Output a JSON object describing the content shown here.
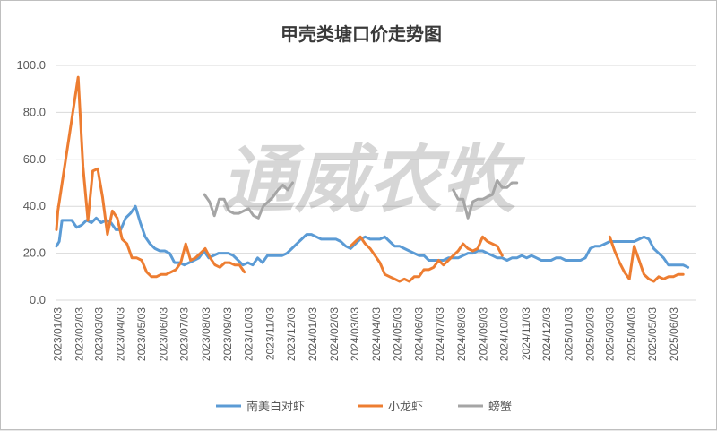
{
  "chart_data": {
    "type": "line",
    "title": "甲壳类塘口价走势图",
    "watermark": "通威农牧",
    "xlabel": "",
    "ylabel": "",
    "ylim": [
      0,
      100
    ],
    "y_ticks": [
      "0.0",
      "20.0",
      "40.0",
      "60.0",
      "80.0",
      "100.0"
    ],
    "x_range": [
      "2023-01-01",
      "2025-07-05"
    ],
    "x_ticks": [
      "2023/01/03",
      "2023/02/03",
      "2023/03/03",
      "2023/04/03",
      "2023/05/03",
      "2023/06/03",
      "2023/07/03",
      "2023/08/03",
      "2023/09/03",
      "2023/10/03",
      "2023/11/03",
      "2023/12/03",
      "2024/01/03",
      "2024/02/03",
      "2024/03/03",
      "2024/04/03",
      "2024/05/03",
      "2024/06/03",
      "2024/07/03",
      "2024/08/03",
      "2024/09/03",
      "2024/10/03",
      "2024/11/03",
      "2024/12/03",
      "2025/01/03",
      "2025/02/03",
      "2025/03/03",
      "2025/04/03",
      "2025/05/03",
      "2025/06/03"
    ],
    "grid": true,
    "legend": "bottom",
    "series": [
      {
        "name": "南美白对虾",
        "color": "#5b9bd5",
        "points": [
          [
            "2023-01-01",
            23
          ],
          [
            "2023-01-05",
            25
          ],
          [
            "2023-01-09",
            34
          ],
          [
            "2023-01-16",
            34
          ],
          [
            "2023-01-23",
            34
          ],
          [
            "2023-01-30",
            31
          ],
          [
            "2023-02-06",
            32
          ],
          [
            "2023-02-13",
            34
          ],
          [
            "2023-02-20",
            33
          ],
          [
            "2023-02-27",
            35
          ],
          [
            "2023-03-06",
            33
          ],
          [
            "2023-03-13",
            34
          ],
          [
            "2023-03-20",
            33
          ],
          [
            "2023-03-27",
            30
          ],
          [
            "2023-04-03",
            30
          ],
          [
            "2023-04-10",
            35
          ],
          [
            "2023-04-17",
            37
          ],
          [
            "2023-04-24",
            40
          ],
          [
            "2023-05-01",
            33
          ],
          [
            "2023-05-08",
            27
          ],
          [
            "2023-05-15",
            24
          ],
          [
            "2023-05-22",
            22
          ],
          [
            "2023-05-29",
            21
          ],
          [
            "2023-06-05",
            21
          ],
          [
            "2023-06-12",
            20
          ],
          [
            "2023-06-19",
            16
          ],
          [
            "2023-06-26",
            16
          ],
          [
            "2023-07-03",
            15
          ],
          [
            "2023-07-10",
            16
          ],
          [
            "2023-07-17",
            17
          ],
          [
            "2023-07-24",
            18
          ],
          [
            "2023-07-31",
            21
          ],
          [
            "2023-08-07",
            18
          ],
          [
            "2023-08-14",
            19
          ],
          [
            "2023-08-21",
            20
          ],
          [
            "2023-08-28",
            20
          ],
          [
            "2023-09-04",
            20
          ],
          [
            "2023-09-11",
            19
          ],
          [
            "2023-09-18",
            17
          ],
          [
            "2023-09-25",
            15
          ],
          [
            "2023-10-02",
            16
          ],
          [
            "2023-10-09",
            15
          ],
          [
            "2023-10-16",
            18
          ],
          [
            "2023-10-23",
            16
          ],
          [
            "2023-10-30",
            19
          ],
          [
            "2023-11-06",
            19
          ],
          [
            "2023-11-13",
            19
          ],
          [
            "2023-11-20",
            19
          ],
          [
            "2023-11-27",
            20
          ],
          [
            "2023-12-04",
            22
          ],
          [
            "2023-12-11",
            24
          ],
          [
            "2023-12-18",
            26
          ],
          [
            "2023-12-25",
            28
          ],
          [
            "2024-01-01",
            28
          ],
          [
            "2024-01-08",
            27
          ],
          [
            "2024-01-15",
            26
          ],
          [
            "2024-01-22",
            26
          ],
          [
            "2024-01-29",
            26
          ],
          [
            "2024-02-05",
            26
          ],
          [
            "2024-02-12",
            25
          ],
          [
            "2024-02-19",
            23
          ],
          [
            "2024-02-26",
            22
          ],
          [
            "2024-03-04",
            24
          ],
          [
            "2024-03-11",
            26
          ],
          [
            "2024-03-18",
            27
          ],
          [
            "2024-03-25",
            26
          ],
          [
            "2024-04-01",
            26
          ],
          [
            "2024-04-08",
            26
          ],
          [
            "2024-04-15",
            27
          ],
          [
            "2024-04-22",
            25
          ],
          [
            "2024-04-29",
            23
          ],
          [
            "2024-05-06",
            23
          ],
          [
            "2024-05-13",
            22
          ],
          [
            "2024-05-20",
            21
          ],
          [
            "2024-05-27",
            20
          ],
          [
            "2024-06-03",
            19
          ],
          [
            "2024-06-10",
            19
          ],
          [
            "2024-06-17",
            17
          ],
          [
            "2024-06-24",
            17
          ],
          [
            "2024-07-01",
            17
          ],
          [
            "2024-07-08",
            17
          ],
          [
            "2024-07-15",
            18
          ],
          [
            "2024-07-22",
            18
          ],
          [
            "2024-07-29",
            18
          ],
          [
            "2024-08-05",
            19
          ],
          [
            "2024-08-12",
            20
          ],
          [
            "2024-08-19",
            20
          ],
          [
            "2024-08-26",
            21
          ],
          [
            "2024-09-02",
            21
          ],
          [
            "2024-09-09",
            20
          ],
          [
            "2024-09-16",
            19
          ],
          [
            "2024-09-23",
            18
          ],
          [
            "2024-09-30",
            18
          ],
          [
            "2024-10-07",
            17
          ],
          [
            "2024-10-14",
            18
          ],
          [
            "2024-10-21",
            18
          ],
          [
            "2024-10-28",
            19
          ],
          [
            "2024-11-04",
            18
          ],
          [
            "2024-11-11",
            19
          ],
          [
            "2024-11-18",
            18
          ],
          [
            "2024-11-25",
            17
          ],
          [
            "2024-12-02",
            17
          ],
          [
            "2024-12-09",
            17
          ],
          [
            "2024-12-16",
            18
          ],
          [
            "2024-12-23",
            18
          ],
          [
            "2024-12-30",
            17
          ],
          [
            "2025-01-06",
            17
          ],
          [
            "2025-01-13",
            17
          ],
          [
            "2025-01-20",
            17
          ],
          [
            "2025-01-27",
            18
          ],
          [
            "2025-02-03",
            22
          ],
          [
            "2025-02-10",
            23
          ],
          [
            "2025-02-17",
            23
          ],
          [
            "2025-02-24",
            24
          ],
          [
            "2025-03-03",
            25
          ],
          [
            "2025-03-10",
            25
          ],
          [
            "2025-03-17",
            25
          ],
          [
            "2025-03-24",
            25
          ],
          [
            "2025-03-31",
            25
          ],
          [
            "2025-04-07",
            25
          ],
          [
            "2025-04-14",
            26
          ],
          [
            "2025-04-21",
            27
          ],
          [
            "2025-04-28",
            26
          ],
          [
            "2025-05-05",
            22
          ],
          [
            "2025-05-12",
            20
          ],
          [
            "2025-05-19",
            18
          ],
          [
            "2025-05-26",
            15
          ],
          [
            "2025-06-02",
            15
          ],
          [
            "2025-06-09",
            15
          ],
          [
            "2025-06-16",
            15
          ],
          [
            "2025-06-23",
            14
          ]
        ]
      },
      {
        "name": "小龙虾",
        "color": "#ed7d31",
        "points": [
          [
            "2023-01-01",
            30
          ],
          [
            "2023-01-03",
            38
          ],
          [
            "2023-02-01",
            95
          ],
          [
            "2023-02-08",
            57
          ],
          [
            "2023-02-15",
            34
          ],
          [
            "2023-02-22",
            55
          ],
          [
            "2023-03-01",
            56
          ],
          [
            "2023-03-08",
            44
          ],
          [
            "2023-03-15",
            28
          ],
          [
            "2023-03-22",
            38
          ],
          [
            "2023-03-29",
            35
          ],
          [
            "2023-04-05",
            26
          ],
          [
            "2023-04-12",
            24
          ],
          [
            "2023-04-19",
            18
          ],
          [
            "2023-04-26",
            18
          ],
          [
            "2023-05-03",
            17
          ],
          [
            "2023-05-10",
            12
          ],
          [
            "2023-05-17",
            10
          ],
          [
            "2023-05-24",
            10
          ],
          [
            "2023-05-31",
            11
          ],
          [
            "2023-06-07",
            11
          ],
          [
            "2023-06-14",
            12
          ],
          [
            "2023-06-21",
            13
          ],
          [
            "2023-06-28",
            16
          ],
          [
            "2023-07-05",
            24
          ],
          [
            "2023-07-12",
            17
          ],
          [
            "2023-07-19",
            18
          ],
          [
            "2023-07-26",
            20
          ],
          [
            "2023-08-02",
            22
          ],
          [
            "2023-08-09",
            18
          ],
          [
            "2023-08-16",
            15
          ],
          [
            "2023-08-23",
            14
          ],
          [
            "2023-08-30",
            16
          ],
          [
            "2023-09-06",
            16
          ],
          [
            "2023-09-13",
            15
          ],
          [
            "2023-09-20",
            15
          ],
          [
            "2023-09-27",
            12
          ],
          [
            "2024-02-26",
            23
          ],
          [
            "2024-03-04",
            25
          ],
          [
            "2024-03-11",
            27
          ],
          [
            "2024-03-18",
            24
          ],
          [
            "2024-03-25",
            22
          ],
          [
            "2024-04-01",
            19
          ],
          [
            "2024-04-08",
            16
          ],
          [
            "2024-04-15",
            11
          ],
          [
            "2024-04-22",
            10
          ],
          [
            "2024-04-29",
            9
          ],
          [
            "2024-05-06",
            8
          ],
          [
            "2024-05-13",
            9
          ],
          [
            "2024-05-20",
            8
          ],
          [
            "2024-05-27",
            10
          ],
          [
            "2024-06-03",
            10
          ],
          [
            "2024-06-10",
            13
          ],
          [
            "2024-06-17",
            13
          ],
          [
            "2024-06-24",
            14
          ],
          [
            "2024-07-01",
            17
          ],
          [
            "2024-07-08",
            15
          ],
          [
            "2024-07-15",
            17
          ],
          [
            "2024-07-22",
            19
          ],
          [
            "2024-07-29",
            21
          ],
          [
            "2024-08-05",
            24
          ],
          [
            "2024-08-12",
            22
          ],
          [
            "2024-08-19",
            21
          ],
          [
            "2024-08-26",
            22
          ],
          [
            "2024-09-02",
            27
          ],
          [
            "2024-09-09",
            25
          ],
          [
            "2024-09-16",
            24
          ],
          [
            "2024-09-23",
            23
          ],
          [
            "2024-09-30",
            19
          ],
          [
            "2025-03-03",
            27
          ],
          [
            "2025-03-10",
            21
          ],
          [
            "2025-03-17",
            16
          ],
          [
            "2025-03-24",
            12
          ],
          [
            "2025-03-31",
            9
          ],
          [
            "2025-04-07",
            23
          ],
          [
            "2025-04-14",
            17
          ],
          [
            "2025-04-21",
            11
          ],
          [
            "2025-04-28",
            9
          ],
          [
            "2025-05-05",
            8
          ],
          [
            "2025-05-12",
            10
          ],
          [
            "2025-05-19",
            9
          ],
          [
            "2025-05-26",
            10
          ],
          [
            "2025-06-02",
            10
          ],
          [
            "2025-06-09",
            11
          ],
          [
            "2025-06-16",
            11
          ]
        ]
      },
      {
        "name": "螃蟹",
        "color": "#a5a5a5",
        "points": [
          [
            "2023-08-01",
            45
          ],
          [
            "2023-08-08",
            42
          ],
          [
            "2023-08-15",
            36
          ],
          [
            "2023-08-22",
            43
          ],
          [
            "2023-08-29",
            43
          ],
          [
            "2023-09-05",
            38
          ],
          [
            "2023-09-12",
            37
          ],
          [
            "2023-09-19",
            37
          ],
          [
            "2023-09-26",
            38
          ],
          [
            "2023-10-03",
            39
          ],
          [
            "2023-10-10",
            36
          ],
          [
            "2023-10-17",
            35
          ],
          [
            "2023-10-24",
            40
          ],
          [
            "2023-10-31",
            42
          ],
          [
            "2023-11-07",
            44
          ],
          [
            "2023-11-14",
            47
          ],
          [
            "2023-11-21",
            49
          ],
          [
            "2023-11-28",
            47
          ],
          [
            "2023-12-05",
            50
          ],
          [
            "2024-07-22",
            47
          ],
          [
            "2024-07-29",
            43
          ],
          [
            "2024-08-05",
            43
          ],
          [
            "2024-08-12",
            35
          ],
          [
            "2024-08-19",
            42
          ],
          [
            "2024-08-26",
            43
          ],
          [
            "2024-09-02",
            43
          ],
          [
            "2024-09-09",
            44
          ],
          [
            "2024-09-16",
            45
          ],
          [
            "2024-09-23",
            51
          ],
          [
            "2024-09-30",
            48
          ],
          [
            "2024-10-07",
            48
          ],
          [
            "2024-10-14",
            50
          ],
          [
            "2024-10-21",
            50
          ]
        ]
      }
    ]
  }
}
